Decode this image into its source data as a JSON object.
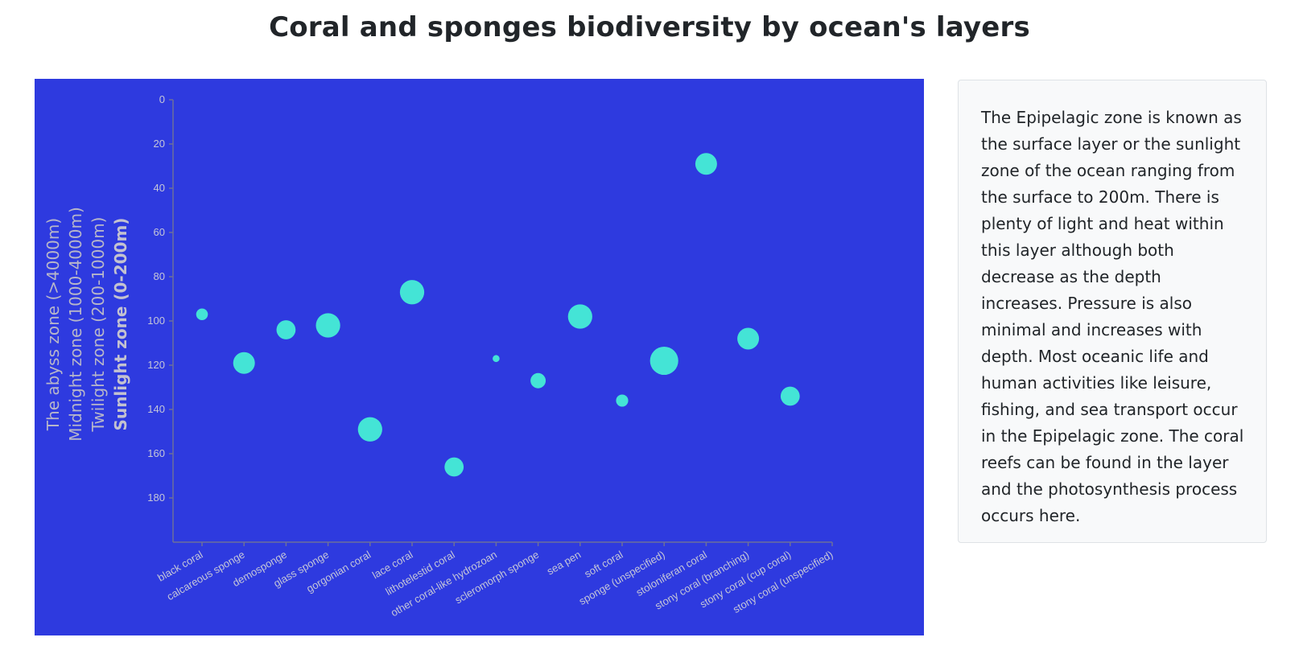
{
  "page": {
    "title": "Coral and sponges biodiversity by ocean's layers"
  },
  "zones": [
    {
      "label": "The abyss zone (>4000m)",
      "active": false
    },
    {
      "label": "Midnight zone (1000-4000m)",
      "active": false
    },
    {
      "label": "Twilight zone (200-1000m)",
      "active": false
    },
    {
      "label": "Sunlight zone (0-200m)",
      "active": true
    }
  ],
  "info": {
    "text": "The Epipelagic zone is known as the surface layer or the sunlight zone of the ocean ranging from the surface to 200m. There is plenty of light and heat within this layer although both decrease as the depth increases. Pressure is also minimal and increases with depth. Most oceanic life and human activities like leisure, fishing, and sea transport occur in the Epipelagic zone. The coral reefs can be found in the layer and the photosynthesis process occurs here."
  },
  "colors": {
    "background": "#2e3adf",
    "bubble": "#44e4d6",
    "axis_text": "#c5c6d8"
  },
  "chart_data": {
    "type": "scatter",
    "title": "",
    "xlabel": "",
    "ylabel": "",
    "y_inverted": true,
    "ylim": [
      0,
      200
    ],
    "yticks": [
      0,
      20,
      40,
      60,
      80,
      100,
      120,
      140,
      160,
      180
    ],
    "categories": [
      "black coral",
      "calcareous sponge",
      "demosponge",
      "glass sponge",
      "gorgonian coral",
      "lace coral",
      "lithotelestid coral",
      "other coral-like hydrozoan",
      "scleromorph sponge",
      "sea pen",
      "soft coral",
      "sponge (unspecified)",
      "stoloniferan coral",
      "stony coral (branching)",
      "stony coral (cup coral)",
      "stony coral (unspecified)"
    ],
    "points": [
      {
        "category": "black coral",
        "depth": 97,
        "size": 0.27
      },
      {
        "category": "calcareous sponge",
        "depth": 119,
        "size": 0.5
      },
      {
        "category": "demosponge",
        "depth": 104,
        "size": 0.44
      },
      {
        "category": "glass sponge",
        "depth": 102,
        "size": 0.56
      },
      {
        "category": "gorgonian coral",
        "depth": 149,
        "size": 0.56
      },
      {
        "category": "lace coral",
        "depth": 87,
        "size": 0.56
      },
      {
        "category": "lithotelestid coral",
        "depth": 166,
        "size": 0.44
      },
      {
        "category": "other coral-like hydrozoan",
        "depth": 117,
        "size": 0.16
      },
      {
        "category": "scleromorph sponge",
        "depth": 127,
        "size": 0.35
      },
      {
        "category": "sea pen",
        "depth": 98,
        "size": 0.56
      },
      {
        "category": "soft coral",
        "depth": 136,
        "size": 0.28
      },
      {
        "category": "sponge (unspecified)",
        "depth": 118,
        "size": 0.65
      },
      {
        "category": "stoloniferan coral",
        "depth": 29,
        "size": 0.5
      },
      {
        "category": "stony coral (branching)",
        "depth": 108,
        "size": 0.5
      },
      {
        "category": "stony coral (cup coral)",
        "depth": 134,
        "size": 0.44
      }
    ]
  }
}
